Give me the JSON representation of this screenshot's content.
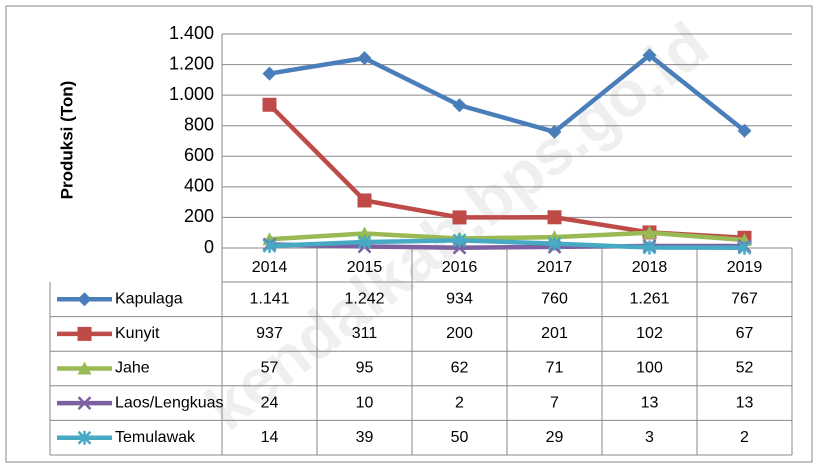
{
  "chart_data": {
    "type": "line",
    "y_label": "Produksi (Ton)",
    "watermark": "kendalkab.bps.go.id",
    "categories": [
      "2014",
      "2015",
      "2016",
      "2017",
      "2018",
      "2019"
    ],
    "ylim": [
      0,
      1400
    ],
    "yticks": [
      0,
      200,
      400,
      600,
      800,
      {
        "value": 1000,
        "label": "1.000"
      },
      {
        "value": 1200,
        "label": "1.200"
      },
      {
        "value": 1400,
        "label": "1.400"
      }
    ],
    "grid": true,
    "series": [
      {
        "name": "Kapulaga",
        "color": "#4a7ebb",
        "marker": "diamond",
        "values": [
          1141,
          1242,
          934,
          760,
          1261,
          767
        ],
        "value_labels": [
          "1.141",
          "1.242",
          "934",
          "760",
          "1.261",
          "767"
        ]
      },
      {
        "name": "Kunyit",
        "color": "#be4b48",
        "marker": "square",
        "values": [
          937,
          311,
          200,
          201,
          102,
          67
        ]
      },
      {
        "name": "Jahe",
        "color": "#98b954",
        "marker": "triangle",
        "values": [
          57,
          95,
          62,
          71,
          100,
          52
        ]
      },
      {
        "name": "Laos/Lengkuas",
        "color": "#7d60a0",
        "marker": "x",
        "values": [
          24,
          10,
          2,
          7,
          13,
          13
        ]
      },
      {
        "name": "Temulawak",
        "color": "#46aac5",
        "marker": "star",
        "values": [
          14,
          39,
          50,
          29,
          3,
          2
        ]
      }
    ]
  }
}
